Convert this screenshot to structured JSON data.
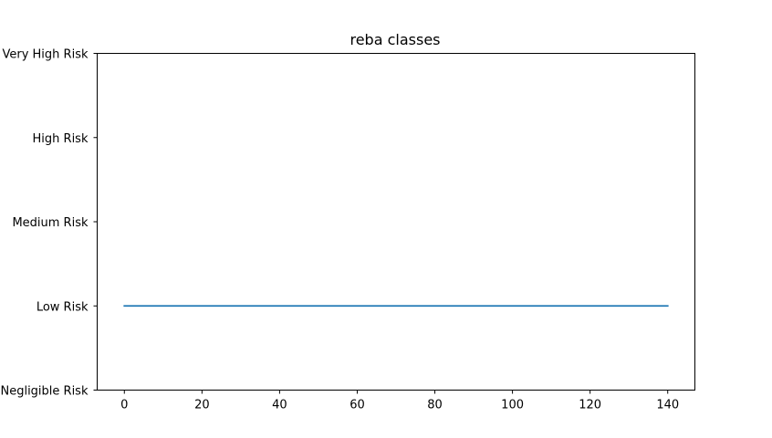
{
  "chart_data": {
    "type": "line",
    "title": "reba classes",
    "xlabel": "",
    "ylabel": "",
    "xlim": [
      -7,
      147
    ],
    "x_ticks": [
      0,
      20,
      40,
      60,
      80,
      100,
      120,
      140
    ],
    "y_categories": [
      "Negligible Risk",
      "Low Risk",
      "Medium Risk",
      "High Risk",
      "Very High Risk"
    ],
    "ylim": [
      0,
      4
    ],
    "grid": false,
    "series": [
      {
        "x": [
          0,
          140
        ],
        "y": [
          "Low Risk",
          "Low Risk"
        ],
        "color": "#1f77b4"
      }
    ]
  }
}
